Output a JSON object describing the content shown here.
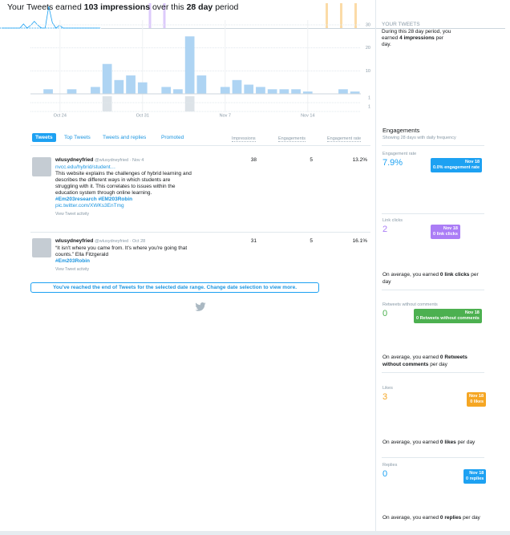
{
  "header": {
    "pre": "Your Tweets earned",
    "impressions": "103 impressions",
    "mid": "over this",
    "days": "28 day",
    "post": "period"
  },
  "impressions_chart": {
    "categories": [
      null,
      null,
      "Oct 24",
      null,
      null,
      null,
      null,
      null,
      null,
      "Oct 31",
      null,
      null,
      null,
      null,
      null,
      null,
      "Nov 7",
      null,
      null,
      null,
      null,
      null,
      null,
      "Nov 14",
      null,
      null,
      null,
      null
    ],
    "values": [
      0,
      2,
      0,
      2,
      0,
      3,
      13,
      6,
      8,
      5,
      0,
      3,
      2,
      25,
      8,
      0,
      3,
      6,
      4,
      3,
      2,
      2,
      2,
      1,
      0,
      0,
      2,
      1
    ],
    "color": "#aed4f3",
    "ylim": [
      0,
      30
    ],
    "yticks": [
      10,
      20,
      30
    ],
    "strip_values": [
      0,
      0,
      0,
      0,
      0,
      0,
      1,
      0,
      0,
      0,
      0,
      0,
      0,
      1,
      0,
      0,
      0,
      0,
      0,
      0,
      0,
      0,
      0,
      0,
      0,
      0,
      0,
      0
    ],
    "strip_ticks": [
      1,
      1
    ],
    "strip_color": "#dde3e8"
  },
  "summary": {
    "title": "YOUR TWEETS",
    "pre": "During this 28 day period, you earned",
    "bold": "4 impressions",
    "post": "per day."
  },
  "tabs": [
    "Tweets",
    "Top Tweets",
    "Tweets and replies",
    "Promoted"
  ],
  "columns": [
    "Impressions",
    "Engagements",
    "Engagement rate"
  ],
  "tweets": [
    {
      "name": "wlusydneyfried",
      "meta": "@wlusydneyfried · Nov 4",
      "lines": [
        "nvcc.edu/hybrid/student…",
        "This website explains the challenges of hybrid learning and",
        "describes the different ways in which students are",
        "struggling with it. This correlates to issues within the",
        "education system through online learning.",
        "#Em203research #EM203Robin",
        "pic.twitter.com/XWKs3EnTmg"
      ],
      "activity": "View Tweet activity",
      "impressions": 38,
      "engagements": 5,
      "rate": "13.2%"
    },
    {
      "name": "wlusydneyfried",
      "meta": "@wlusydneyfried · Oct 28",
      "lines": [
        "“It isn't where you came from. It's where you're going that",
        "counts.” Ella Fitzgerald",
        "#Em203Robin"
      ],
      "activity": "View Tweet activity",
      "impressions": 31,
      "engagements": 5,
      "rate": "16.1%"
    }
  ],
  "banner": "You've reached the end of Tweets for the selected date range. Change date selection to view more.",
  "engagements": {
    "title": "Engagements",
    "subtitle": "Showing 28 days with daily frequency",
    "cards": [
      {
        "label": "Engagement rate",
        "value": "7.9%",
        "date": "Nov 18",
        "tip": "0.0% engagement rate",
        "color": "#1da1f2",
        "kind": "line",
        "values": [
          0,
          0,
          0,
          0,
          0,
          0,
          3,
          0,
          2,
          5,
          2,
          0,
          0,
          16,
          4,
          0,
          2,
          0,
          0,
          0,
          0,
          0,
          0,
          0,
          0,
          0,
          0,
          0
        ]
      },
      {
        "label": "Link clicks",
        "value": "2",
        "date": "Nov 18",
        "tip": "0 link clicks",
        "color": "#ab7df6",
        "kind": "bar",
        "values": [
          0,
          0,
          0,
          0,
          0,
          0,
          0,
          0,
          0,
          0,
          0,
          0,
          0,
          1,
          0,
          0,
          0,
          1,
          0,
          0,
          0,
          0,
          0,
          0,
          0,
          0,
          0,
          0
        ],
        "avg_pre": "On average, you earned",
        "avg_bold": "0 link clicks",
        "avg_post": "per day"
      },
      {
        "label": "Retweets without comments",
        "value": "0",
        "date": "Nov 18",
        "tip": "0 Retweets without comments",
        "color": "#4cb050",
        "kind": "bar",
        "values": [
          0,
          0,
          0,
          0,
          0,
          0,
          0,
          0,
          0,
          0,
          0,
          0,
          0,
          0,
          0,
          0,
          0,
          0,
          0,
          0,
          0,
          0,
          0,
          0,
          0,
          0,
          0,
          0
        ],
        "avg_pre": "On average, you earned",
        "avg_bold": "0 Retweets without comments",
        "avg_post": "per day"
      },
      {
        "label": "Likes",
        "value": "3",
        "date": "Nov 18",
        "tip": "0 likes",
        "color": "#f5a623",
        "kind": "bar",
        "values": [
          0,
          0,
          0,
          0,
          0,
          0,
          1,
          0,
          0,
          0,
          1,
          0,
          0,
          0,
          1,
          0,
          0,
          0,
          0,
          0,
          0,
          0,
          0,
          0,
          0,
          0,
          0,
          0
        ],
        "avg_pre": "On average, you earned",
        "avg_bold": "0 likes",
        "avg_post": "per day"
      },
      {
        "label": "Replies",
        "value": "0",
        "date": "Nov 18",
        "tip": "0 replies",
        "color": "#1da1f2",
        "kind": "bar",
        "values": [
          0,
          0,
          0,
          0,
          0,
          0,
          0,
          0,
          0,
          0,
          0,
          0,
          0,
          0,
          0,
          0,
          0,
          0,
          0,
          0,
          0,
          0,
          0,
          0,
          0,
          0,
          0,
          0
        ],
        "avg_pre": "On average, you earned",
        "avg_bold": "0 replies",
        "avg_post": "per day"
      }
    ]
  }
}
